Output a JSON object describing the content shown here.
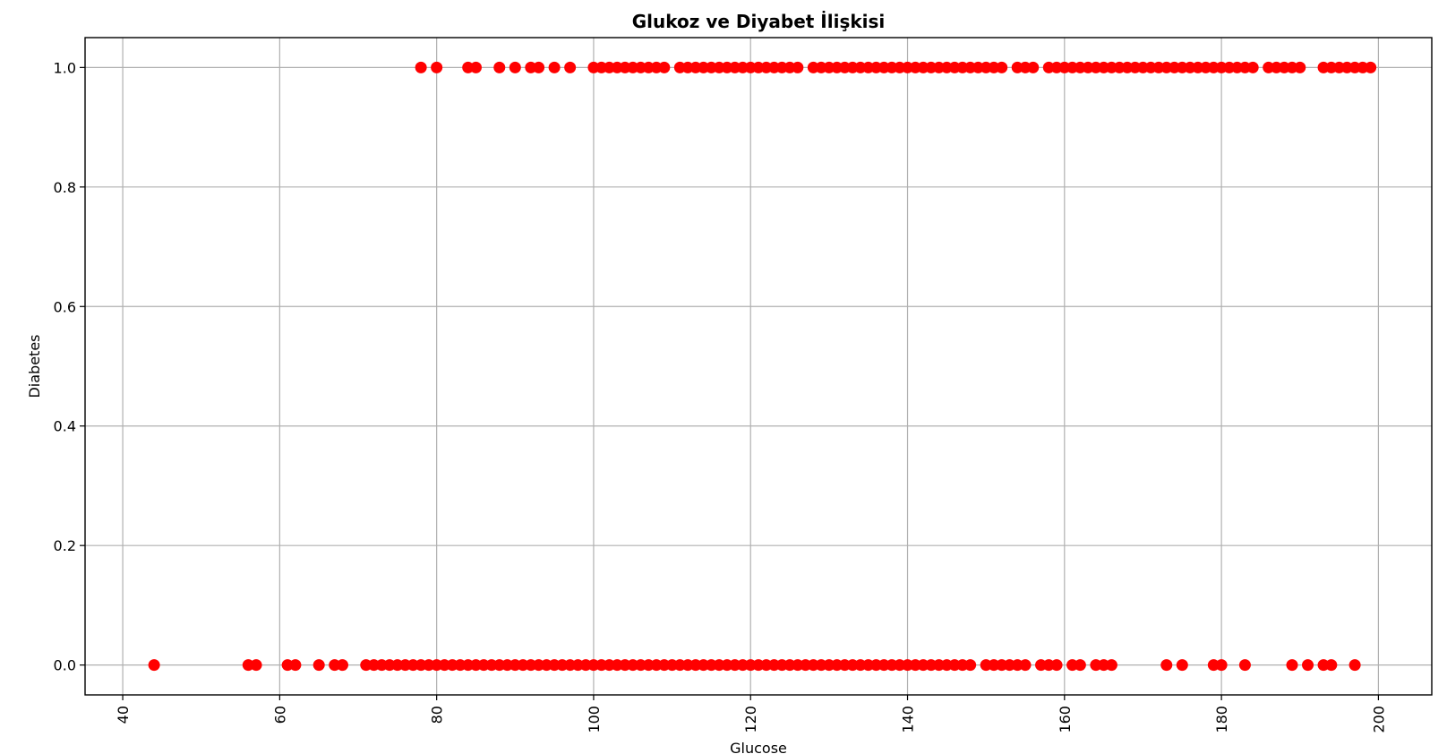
{
  "chart_data": {
    "type": "scatter",
    "title": "Glukoz ve Diyabet İlişkisi",
    "xlabel": "Glucose",
    "ylabel": "Diabetes",
    "xlim": [
      35.2,
      206.8
    ],
    "ylim": [
      -0.05,
      1.05
    ],
    "x_ticks": [
      40,
      60,
      80,
      100,
      120,
      140,
      160,
      180,
      200
    ],
    "y_ticks": [
      0.0,
      0.2,
      0.4,
      0.6,
      0.8,
      1.0
    ],
    "x_tick_labels": [
      "40",
      "60",
      "80",
      "100",
      "120",
      "140",
      "160",
      "180",
      "200"
    ],
    "y_tick_labels": [
      "0.0",
      "0.2",
      "0.4",
      "0.6",
      "0.8",
      "1.0"
    ],
    "x_tick_rotation": 90,
    "grid": true,
    "marker_color": "#ff0000",
    "series": [
      {
        "y": 1.0,
        "x": [
          78,
          80,
          84,
          85,
          88,
          90,
          92,
          93,
          95,
          97,
          100,
          101,
          102,
          103,
          104,
          105,
          106,
          107,
          108,
          109,
          111,
          112,
          113,
          114,
          115,
          116,
          117,
          118,
          119,
          120,
          121,
          122,
          123,
          124,
          125,
          126,
          128,
          129,
          130,
          131,
          132,
          133,
          134,
          135,
          136,
          137,
          138,
          139,
          140,
          141,
          142,
          143,
          144,
          145,
          146,
          147,
          148,
          149,
          150,
          151,
          152,
          154,
          155,
          156,
          158,
          159,
          160,
          161,
          162,
          163,
          164,
          165,
          166,
          167,
          168,
          169,
          170,
          171,
          172,
          173,
          174,
          175,
          176,
          177,
          178,
          179,
          180,
          181,
          182,
          183,
          184,
          186,
          187,
          188,
          189,
          190,
          193,
          194,
          195,
          196,
          197,
          198,
          199
        ]
      },
      {
        "y": 0.0,
        "x": [
          44,
          56,
          57,
          61,
          62,
          65,
          67,
          68,
          71,
          72,
          73,
          74,
          75,
          76,
          77,
          78,
          79,
          80,
          81,
          82,
          83,
          84,
          85,
          86,
          87,
          88,
          89,
          90,
          91,
          92,
          93,
          94,
          95,
          96,
          97,
          98,
          99,
          100,
          101,
          102,
          103,
          104,
          105,
          106,
          107,
          108,
          109,
          110,
          111,
          112,
          113,
          114,
          115,
          116,
          117,
          118,
          119,
          120,
          121,
          122,
          123,
          124,
          125,
          126,
          127,
          128,
          129,
          130,
          131,
          132,
          133,
          134,
          135,
          136,
          137,
          138,
          139,
          140,
          141,
          142,
          143,
          144,
          145,
          146,
          147,
          148,
          150,
          151,
          152,
          153,
          154,
          155,
          157,
          158,
          159,
          161,
          162,
          164,
          165,
          166,
          173,
          175,
          179,
          180,
          183,
          189,
          191,
          193,
          194,
          197
        ]
      }
    ]
  }
}
